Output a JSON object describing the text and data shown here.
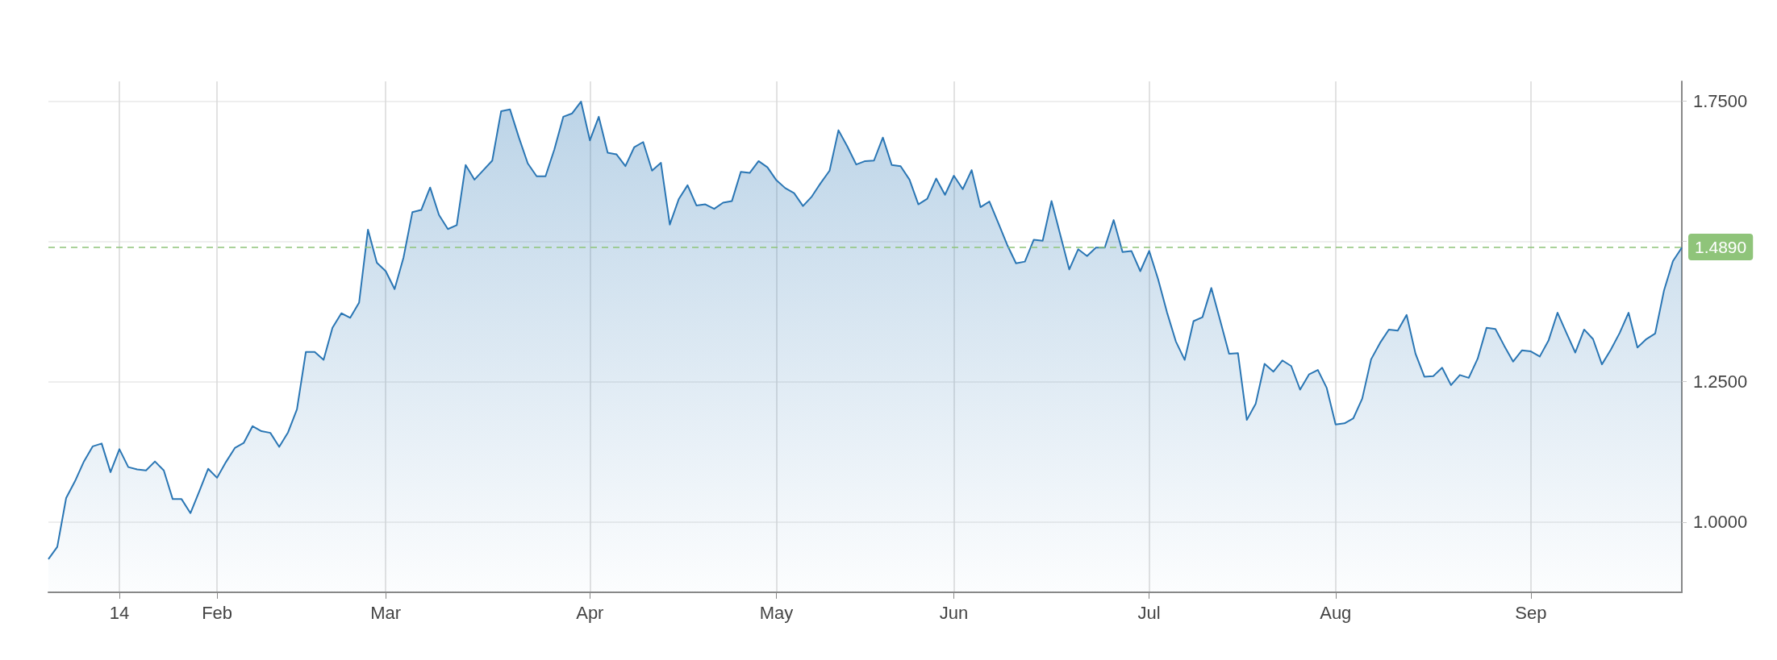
{
  "chart_data": {
    "type": "area",
    "categories": [
      null,
      null,
      null,
      null,
      null,
      null,
      null,
      null,
      "14",
      null,
      null,
      null,
      null,
      null,
      null,
      null,
      null,
      null,
      null,
      "Feb",
      null,
      null,
      null,
      null,
      null,
      null,
      null,
      null,
      null,
      null,
      null,
      null,
      null,
      null,
      null,
      null,
      null,
      null,
      "Mar",
      null,
      null,
      null,
      null,
      null,
      null,
      null,
      null,
      null,
      null,
      null,
      null,
      null,
      null,
      null,
      null,
      null,
      null,
      null,
      null,
      null,
      null,
      "Apr",
      null,
      null,
      null,
      null,
      null,
      null,
      null,
      null,
      null,
      null,
      null,
      null,
      null,
      null,
      null,
      null,
      null,
      null,
      null,
      null,
      "May",
      null,
      null,
      null,
      null,
      null,
      null,
      null,
      null,
      null,
      null,
      null,
      null,
      null,
      null,
      null,
      null,
      null,
      null,
      null,
      "Jun",
      null,
      null,
      null,
      null,
      null,
      null,
      null,
      null,
      null,
      null,
      null,
      null,
      null,
      null,
      null,
      null,
      null,
      null,
      null,
      null,
      null,
      "Jul",
      null,
      null,
      null,
      null,
      null,
      null,
      null,
      null,
      null,
      null,
      null,
      null,
      null,
      null,
      null,
      null,
      null,
      null,
      null,
      null,
      "Aug",
      null,
      null,
      null,
      null,
      null,
      null,
      null,
      null,
      null,
      null,
      null,
      null,
      null,
      null,
      null,
      null,
      null,
      null,
      null,
      null,
      null,
      "Sep",
      null,
      null,
      null,
      null,
      null,
      null,
      null,
      null,
      null,
      null,
      null,
      null,
      null,
      null,
      null,
      null,
      null
    ],
    "series": [
      {
        "color": "#2a76b4",
        "values": [
          0.934,
          0.956,
          1.043,
          1.073,
          1.108,
          1.135,
          1.14,
          1.089,
          1.13,
          1.098,
          1.094,
          1.092,
          1.108,
          1.092,
          1.041,
          1.041,
          1.016,
          1.055,
          1.095,
          1.079,
          1.107,
          1.132,
          1.141,
          1.171,
          1.162,
          1.159,
          1.134,
          1.16,
          1.201,
          1.303,
          1.303,
          1.289,
          1.346,
          1.372,
          1.364,
          1.391,
          1.521,
          1.462,
          1.447,
          1.415,
          1.471,
          1.552,
          1.556,
          1.596,
          1.547,
          1.522,
          1.529,
          1.636,
          1.61,
          1.627,
          1.644,
          1.732,
          1.735,
          1.685,
          1.639,
          1.616,
          1.616,
          1.664,
          1.722,
          1.728,
          1.749,
          1.68,
          1.722,
          1.658,
          1.655,
          1.634,
          1.668,
          1.677,
          1.626,
          1.64,
          1.53,
          1.575,
          1.6,
          1.564,
          1.566,
          1.558,
          1.569,
          1.572,
          1.624,
          1.622,
          1.643,
          1.632,
          1.609,
          1.595,
          1.586,
          1.563,
          1.58,
          1.604,
          1.626,
          1.698,
          1.669,
          1.637,
          1.643,
          1.644,
          1.685,
          1.636,
          1.634,
          1.61,
          1.566,
          1.576,
          1.612,
          1.583,
          1.617,
          1.593,
          1.627,
          1.561,
          1.571,
          1.533,
          1.494,
          1.461,
          1.464,
          1.503,
          1.501,
          1.572,
          1.511,
          1.45,
          1.486,
          1.474,
          1.489,
          1.489,
          1.538,
          1.481,
          1.483,
          1.447,
          1.483,
          1.433,
          1.374,
          1.322,
          1.289,
          1.358,
          1.365,
          1.417,
          1.359,
          1.3,
          1.301,
          1.182,
          1.211,
          1.282,
          1.268,
          1.288,
          1.278,
          1.236,
          1.263,
          1.271,
          1.239,
          1.174,
          1.176,
          1.185,
          1.22,
          1.29,
          1.319,
          1.343,
          1.341,
          1.369,
          1.3,
          1.259,
          1.26,
          1.275,
          1.244,
          1.262,
          1.257,
          1.291,
          1.346,
          1.344,
          1.314,
          1.286,
          1.306,
          1.304,
          1.295,
          1.324,
          1.373,
          1.337,
          1.302,
          1.343,
          1.326,
          1.281,
          1.307,
          1.337,
          1.373,
          1.311,
          1.326,
          1.336,
          1.413,
          1.465,
          1.489
        ]
      }
    ],
    "ylim": [
      0.875,
      1.785
    ],
    "yticks": [
      {
        "value": 1,
        "label": "1.0000"
      },
      {
        "value": 1.25,
        "label": "1.2500"
      },
      {
        "value": 1.5,
        "label": null
      },
      {
        "value": 1.75,
        "label": "1.7500"
      }
    ],
    "grid": true,
    "ref_lines": [
      {
        "axis": "y",
        "value": 1.489,
        "label": "1.4890",
        "color": "#8fc47a",
        "line_style": "dashed"
      }
    ]
  }
}
